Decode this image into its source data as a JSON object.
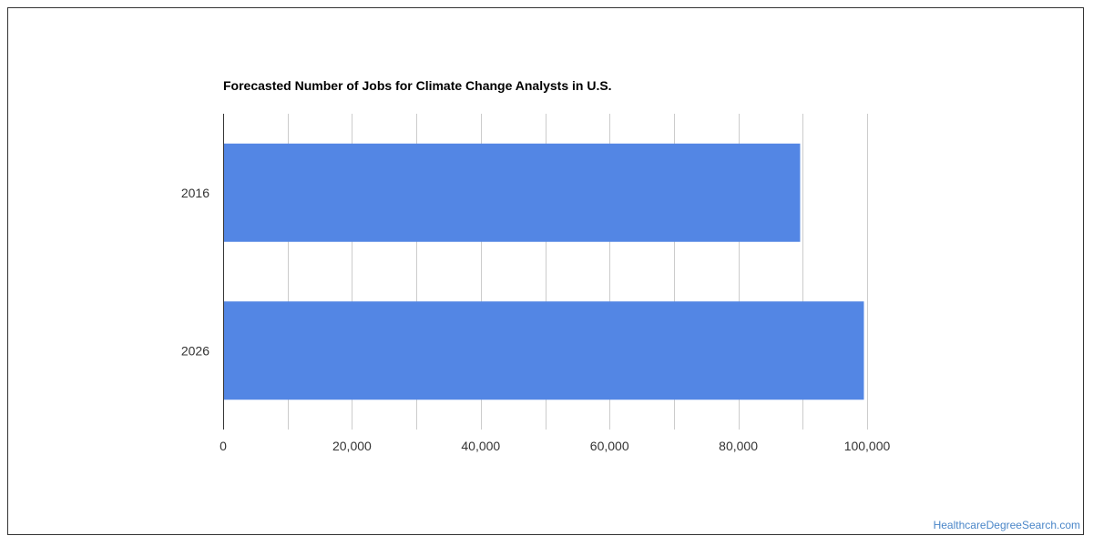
{
  "watermark": "HealthcareDegreeSearch.com",
  "colors": {
    "bar": "#5386e4",
    "grid": "#cccccc",
    "axis": "#333333",
    "tick_text": "#333333"
  },
  "chart_data": {
    "type": "bar",
    "orientation": "horizontal",
    "title": "Forecasted Number of Jobs for Climate Change Analysts in U.S.",
    "xlabel": "",
    "ylabel": "",
    "categories": [
      "2016",
      "2026"
    ],
    "values": [
      89600,
      99500
    ],
    "xlim": [
      0,
      100000
    ],
    "x_ticks": [
      0,
      20000,
      40000,
      60000,
      80000,
      100000
    ],
    "x_tick_labels": [
      "0",
      "20,000",
      "40,000",
      "60,000",
      "80,000",
      "100,000"
    ],
    "grid": true,
    "legend": "none"
  }
}
